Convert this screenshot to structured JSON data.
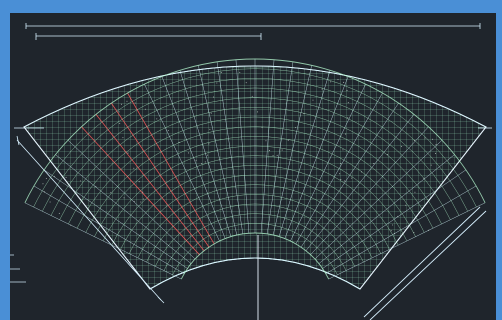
{
  "window": {
    "frame_color": "#4a8fd6",
    "canvas_bg": "#1f252c"
  },
  "drawing": {
    "top_dimension_text": "",
    "secondary_dimension_text": "",
    "secondary_dimension_subtext": "",
    "left_radial_dimension_text": "",
    "center_vertical_text": "",
    "center_lower_text": ""
  },
  "colors": {
    "grid_primary": "#b9ffd4",
    "grid_secondary": "#d7f7ff",
    "dimension_lines": "#d7f1ff",
    "red_hints": "#ff5c5c",
    "outline": "#e9f6ff"
  },
  "icons": {
    "grid": "arc-grid-icon"
  }
}
